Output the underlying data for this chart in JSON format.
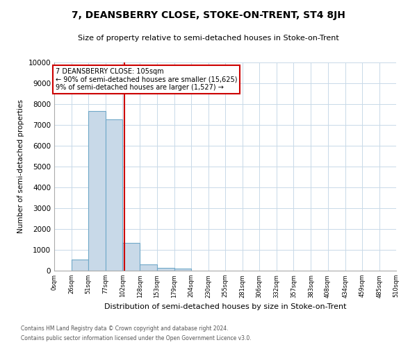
{
  "title": "7, DEANSBERRY CLOSE, STOKE-ON-TRENT, ST4 8JH",
  "subtitle": "Size of property relative to semi-detached houses in Stoke-on-Trent",
  "xlabel": "Distribution of semi-detached houses by size in Stoke-on-Trent",
  "ylabel": "Number of semi-detached properties",
  "footnote1": "Contains HM Land Registry data © Crown copyright and database right 2024.",
  "footnote2": "Contains public sector information licensed under the Open Government Licence v3.0.",
  "property_size": 105,
  "property_label": "7 DEANSBERRY CLOSE: 105sqm",
  "pct_smaller": 90,
  "count_smaller": 15625,
  "pct_larger": 9,
  "count_larger": 1527,
  "bin_edges": [
    0,
    26,
    51,
    77,
    102,
    128,
    153,
    179,
    204,
    230,
    255,
    281,
    306,
    332,
    357,
    383,
    408,
    434,
    459,
    485,
    510
  ],
  "bar_heights": [
    0,
    550,
    7650,
    7250,
    1350,
    310,
    150,
    90,
    0,
    0,
    0,
    0,
    0,
    0,
    0,
    0,
    0,
    0,
    0,
    0
  ],
  "bar_color": "#c8d9e8",
  "bar_edge_color": "#6fa8c8",
  "red_line_x": 105,
  "ylim": [
    0,
    10000
  ],
  "yticks": [
    0,
    1000,
    2000,
    3000,
    4000,
    5000,
    6000,
    7000,
    8000,
    9000,
    10000
  ],
  "xtick_labels": [
    "0sqm",
    "26sqm",
    "51sqm",
    "77sqm",
    "102sqm",
    "128sqm",
    "153sqm",
    "179sqm",
    "204sqm",
    "230sqm",
    "255sqm",
    "281sqm",
    "306sqm",
    "332sqm",
    "357sqm",
    "383sqm",
    "408sqm",
    "434sqm",
    "459sqm",
    "485sqm",
    "510sqm"
  ],
  "annotation_box_color": "#cc0000",
  "grid_color": "#c8d9e8"
}
